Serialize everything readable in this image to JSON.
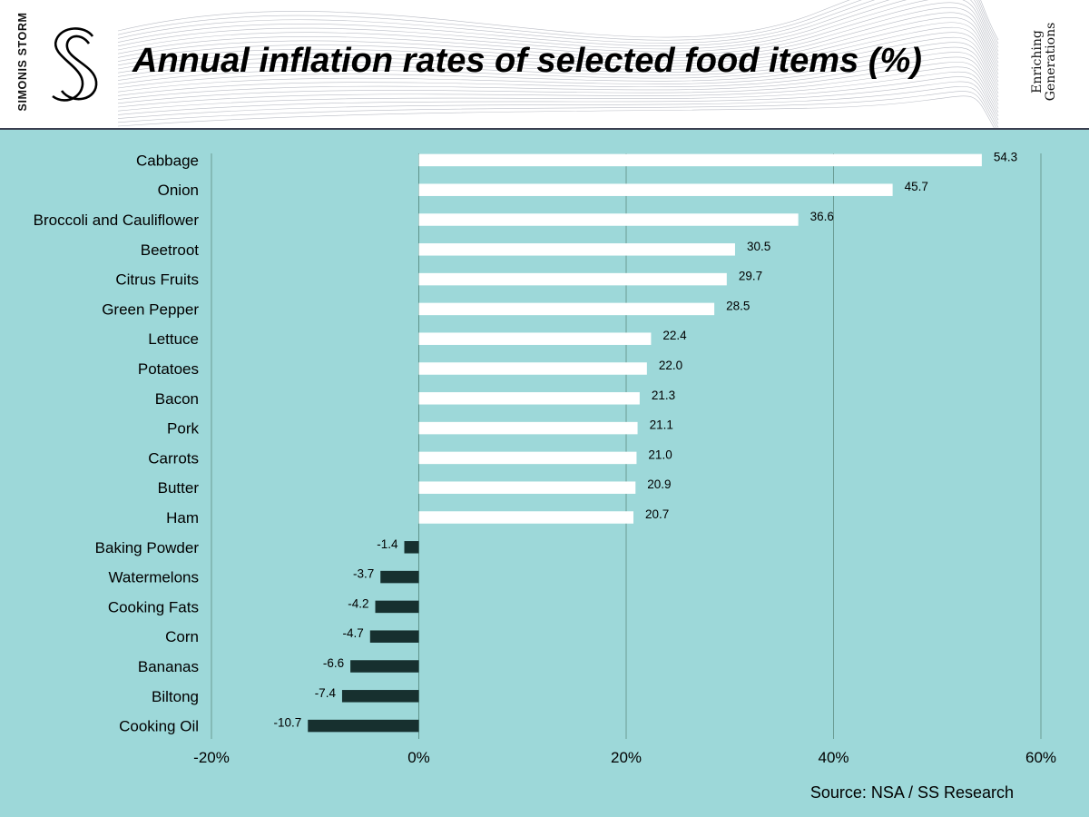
{
  "header": {
    "brand_name": "SIMONIS STORM",
    "tagline_line1": "Enriching",
    "tagline_line2": "Generations"
  },
  "source": "Source: NSA / SS Research",
  "colors": {
    "background": "#9dd8d9",
    "positive_bar": "#ffffff",
    "negative_bar": "#17302f",
    "gridline": "#6a9b93"
  },
  "chart_data": {
    "type": "bar",
    "orientation": "horizontal",
    "title": "Annual inflation rates of selected food items (%)",
    "categories": [
      "Cabbage",
      "Onion",
      "Broccoli and Cauliflower",
      "Beetroot",
      "Citrus Fruits",
      "Green Pepper",
      "Lettuce",
      "Potatoes",
      "Bacon",
      "Pork",
      "Carrots",
      "Butter",
      "Ham",
      "Baking Powder",
      "Watermelons",
      "Cooking Fats",
      "Corn",
      "Bananas",
      "Biltong",
      "Cooking Oil"
    ],
    "values": [
      54.3,
      45.7,
      36.6,
      30.5,
      29.7,
      28.5,
      22.4,
      22.0,
      21.3,
      21.1,
      21.0,
      20.9,
      20.7,
      -1.4,
      -3.7,
      -4.2,
      -4.7,
      -6.6,
      -7.4,
      -10.7
    ],
    "value_labels": [
      "54.3",
      "45.7",
      "36.6",
      "30.5",
      "29.7",
      "28.5",
      "22.4",
      "22.0",
      "21.3",
      "21.1",
      "21.0",
      "20.9",
      "20.7",
      "-1.4",
      "-3.7",
      "-4.2",
      "-4.7",
      "-6.6",
      "-7.4",
      "-10.7"
    ],
    "x_ticks": [
      -20,
      0,
      20,
      40,
      60
    ],
    "x_tick_labels": [
      "-20%",
      "0%",
      "20%",
      "40%",
      "60%"
    ],
    "xlim": [
      -20,
      60
    ],
    "grid": true,
    "xlabel": "",
    "ylabel": ""
  }
}
